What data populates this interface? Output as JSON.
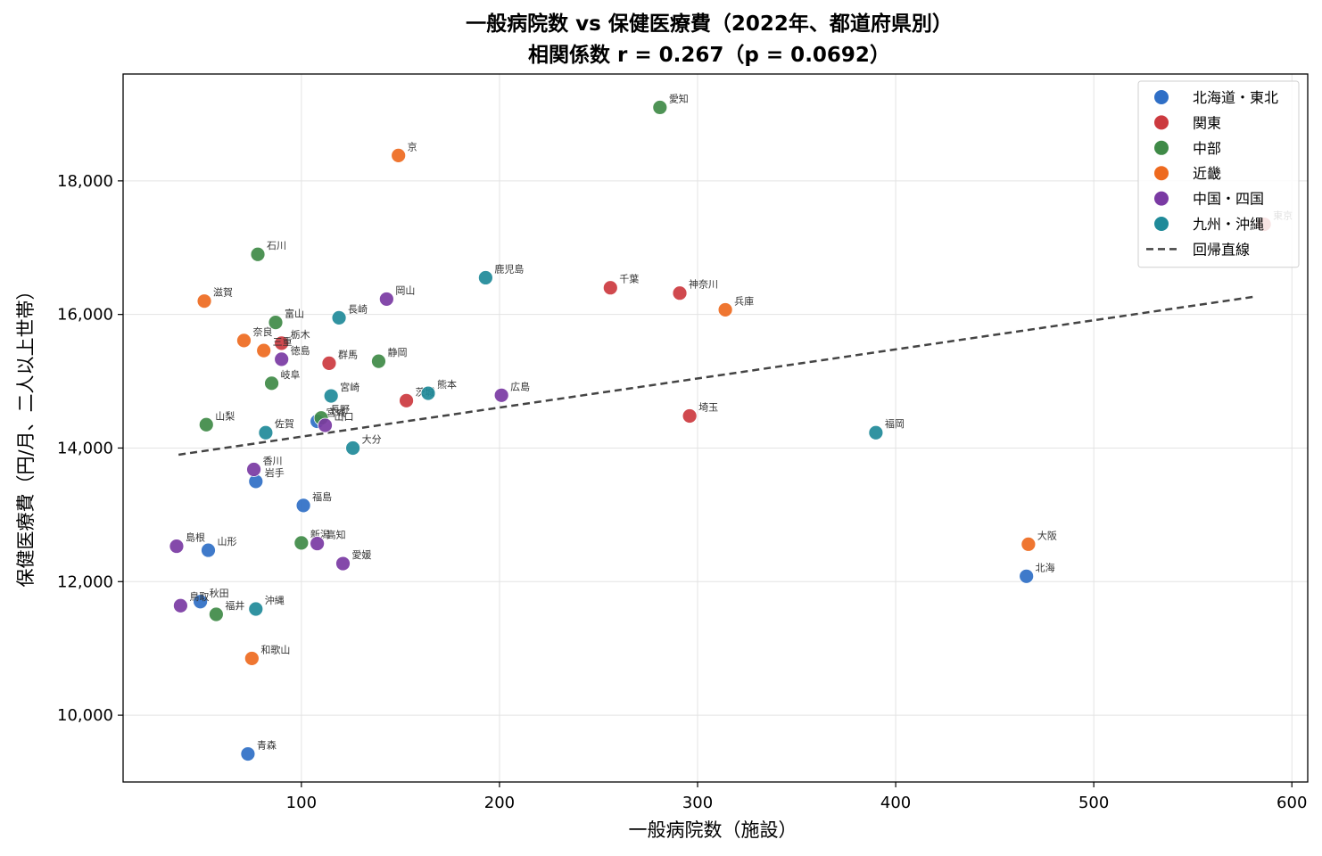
{
  "chart_data": {
    "type": "scatter",
    "title": "一般病院数 vs 保健医療費（2022年、都道府県別）",
    "subtitle": "相関係数 r = 0.267（p = 0.0692）",
    "xlabel": "一般病院数（施設）",
    "ylabel": "保健医療費（円/月、二人以上世帯）",
    "xlim": [
      10,
      608
    ],
    "ylim": [
      9000,
      19600
    ],
    "xticks": [
      100,
      200,
      300,
      400,
      500,
      600
    ],
    "xtick_labels": [
      "100",
      "200",
      "300",
      "400",
      "500",
      "600"
    ],
    "yticks": [
      10000,
      12000,
      14000,
      16000,
      18000
    ],
    "ytick_labels": [
      "10,000",
      "12,000",
      "14,000",
      "16,000",
      "18,000"
    ],
    "grid": true,
    "legend_position": "top-right",
    "regression": {
      "name": "回帰直線",
      "x": [
        38,
        582
      ],
      "y": [
        13900,
        16270
      ],
      "color": "#444444"
    },
    "series": [
      {
        "name": "北海道・東北",
        "color": "#2f6fc6",
        "points": [
          {
            "label": "北海",
            "x": 466,
            "y": 12080
          },
          {
            "label": "青森",
            "x": 73,
            "y": 9420
          },
          {
            "label": "岩手",
            "x": 77,
            "y": 13500
          },
          {
            "label": "宮城",
            "x": 108,
            "y": 14400
          },
          {
            "label": "秋田",
            "x": 49,
            "y": 11700
          },
          {
            "label": "山形",
            "x": 53,
            "y": 12470
          },
          {
            "label": "福島",
            "x": 101,
            "y": 13140
          }
        ]
      },
      {
        "name": "関東",
        "color": "#cc3a3f",
        "points": [
          {
            "label": "茨城",
            "x": 153,
            "y": 14710
          },
          {
            "label": "栃木",
            "x": 90,
            "y": 15570
          },
          {
            "label": "群馬",
            "x": 114,
            "y": 15270
          },
          {
            "label": "埼玉",
            "x": 296,
            "y": 14480
          },
          {
            "label": "千葉",
            "x": 256,
            "y": 16400
          },
          {
            "label": "東京",
            "x": 586,
            "y": 17350
          },
          {
            "label": "神奈川",
            "x": 291,
            "y": 16320
          }
        ]
      },
      {
        "name": "中部",
        "color": "#3f8a47",
        "points": [
          {
            "label": "新潟",
            "x": 100,
            "y": 12580
          },
          {
            "label": "富山",
            "x": 87,
            "y": 15880
          },
          {
            "label": "石川",
            "x": 78,
            "y": 16900
          },
          {
            "label": "福井",
            "x": 57,
            "y": 11510
          },
          {
            "label": "山梨",
            "x": 52,
            "y": 14350
          },
          {
            "label": "長野",
            "x": 110,
            "y": 14450
          },
          {
            "label": "岐阜",
            "x": 85,
            "y": 14970
          },
          {
            "label": "静岡",
            "x": 139,
            "y": 15300
          },
          {
            "label": "愛知",
            "x": 281,
            "y": 19100
          }
        ]
      },
      {
        "name": "近畿",
        "color": "#ee6a1f",
        "points": [
          {
            "label": "三重",
            "x": 81,
            "y": 15460
          },
          {
            "label": "滋賀",
            "x": 51,
            "y": 16200
          },
          {
            "label": "京",
            "x": 149,
            "y": 18380
          },
          {
            "label": "大阪",
            "x": 467,
            "y": 12560
          },
          {
            "label": "兵庫",
            "x": 314,
            "y": 16070
          },
          {
            "label": "奈良",
            "x": 71,
            "y": 15610
          },
          {
            "label": "和歌山",
            "x": 75,
            "y": 10850
          }
        ]
      },
      {
        "name": "中国・四国",
        "color": "#7a3aa3",
        "points": [
          {
            "label": "鳥取",
            "x": 39,
            "y": 11640
          },
          {
            "label": "島根",
            "x": 37,
            "y": 12530
          },
          {
            "label": "岡山",
            "x": 143,
            "y": 16230
          },
          {
            "label": "広島",
            "x": 201,
            "y": 14790
          },
          {
            "label": "山口",
            "x": 112,
            "y": 14340
          },
          {
            "label": "徳島",
            "x": 90,
            "y": 15330
          },
          {
            "label": "香川",
            "x": 76,
            "y": 13680
          },
          {
            "label": "愛媛",
            "x": 121,
            "y": 12270
          },
          {
            "label": "高知",
            "x": 108,
            "y": 12570
          }
        ]
      },
      {
        "name": "九州・沖縄",
        "color": "#1f8a99",
        "points": [
          {
            "label": "福岡",
            "x": 390,
            "y": 14230
          },
          {
            "label": "佐賀",
            "x": 82,
            "y": 14230
          },
          {
            "label": "長崎",
            "x": 119,
            "y": 15950
          },
          {
            "label": "熊本",
            "x": 164,
            "y": 14820
          },
          {
            "label": "大分",
            "x": 126,
            "y": 14000
          },
          {
            "label": "宮崎",
            "x": 115,
            "y": 14780
          },
          {
            "label": "鹿児島",
            "x": 193,
            "y": 16550
          },
          {
            "label": "沖縄",
            "x": 77,
            "y": 11590
          }
        ]
      }
    ]
  }
}
